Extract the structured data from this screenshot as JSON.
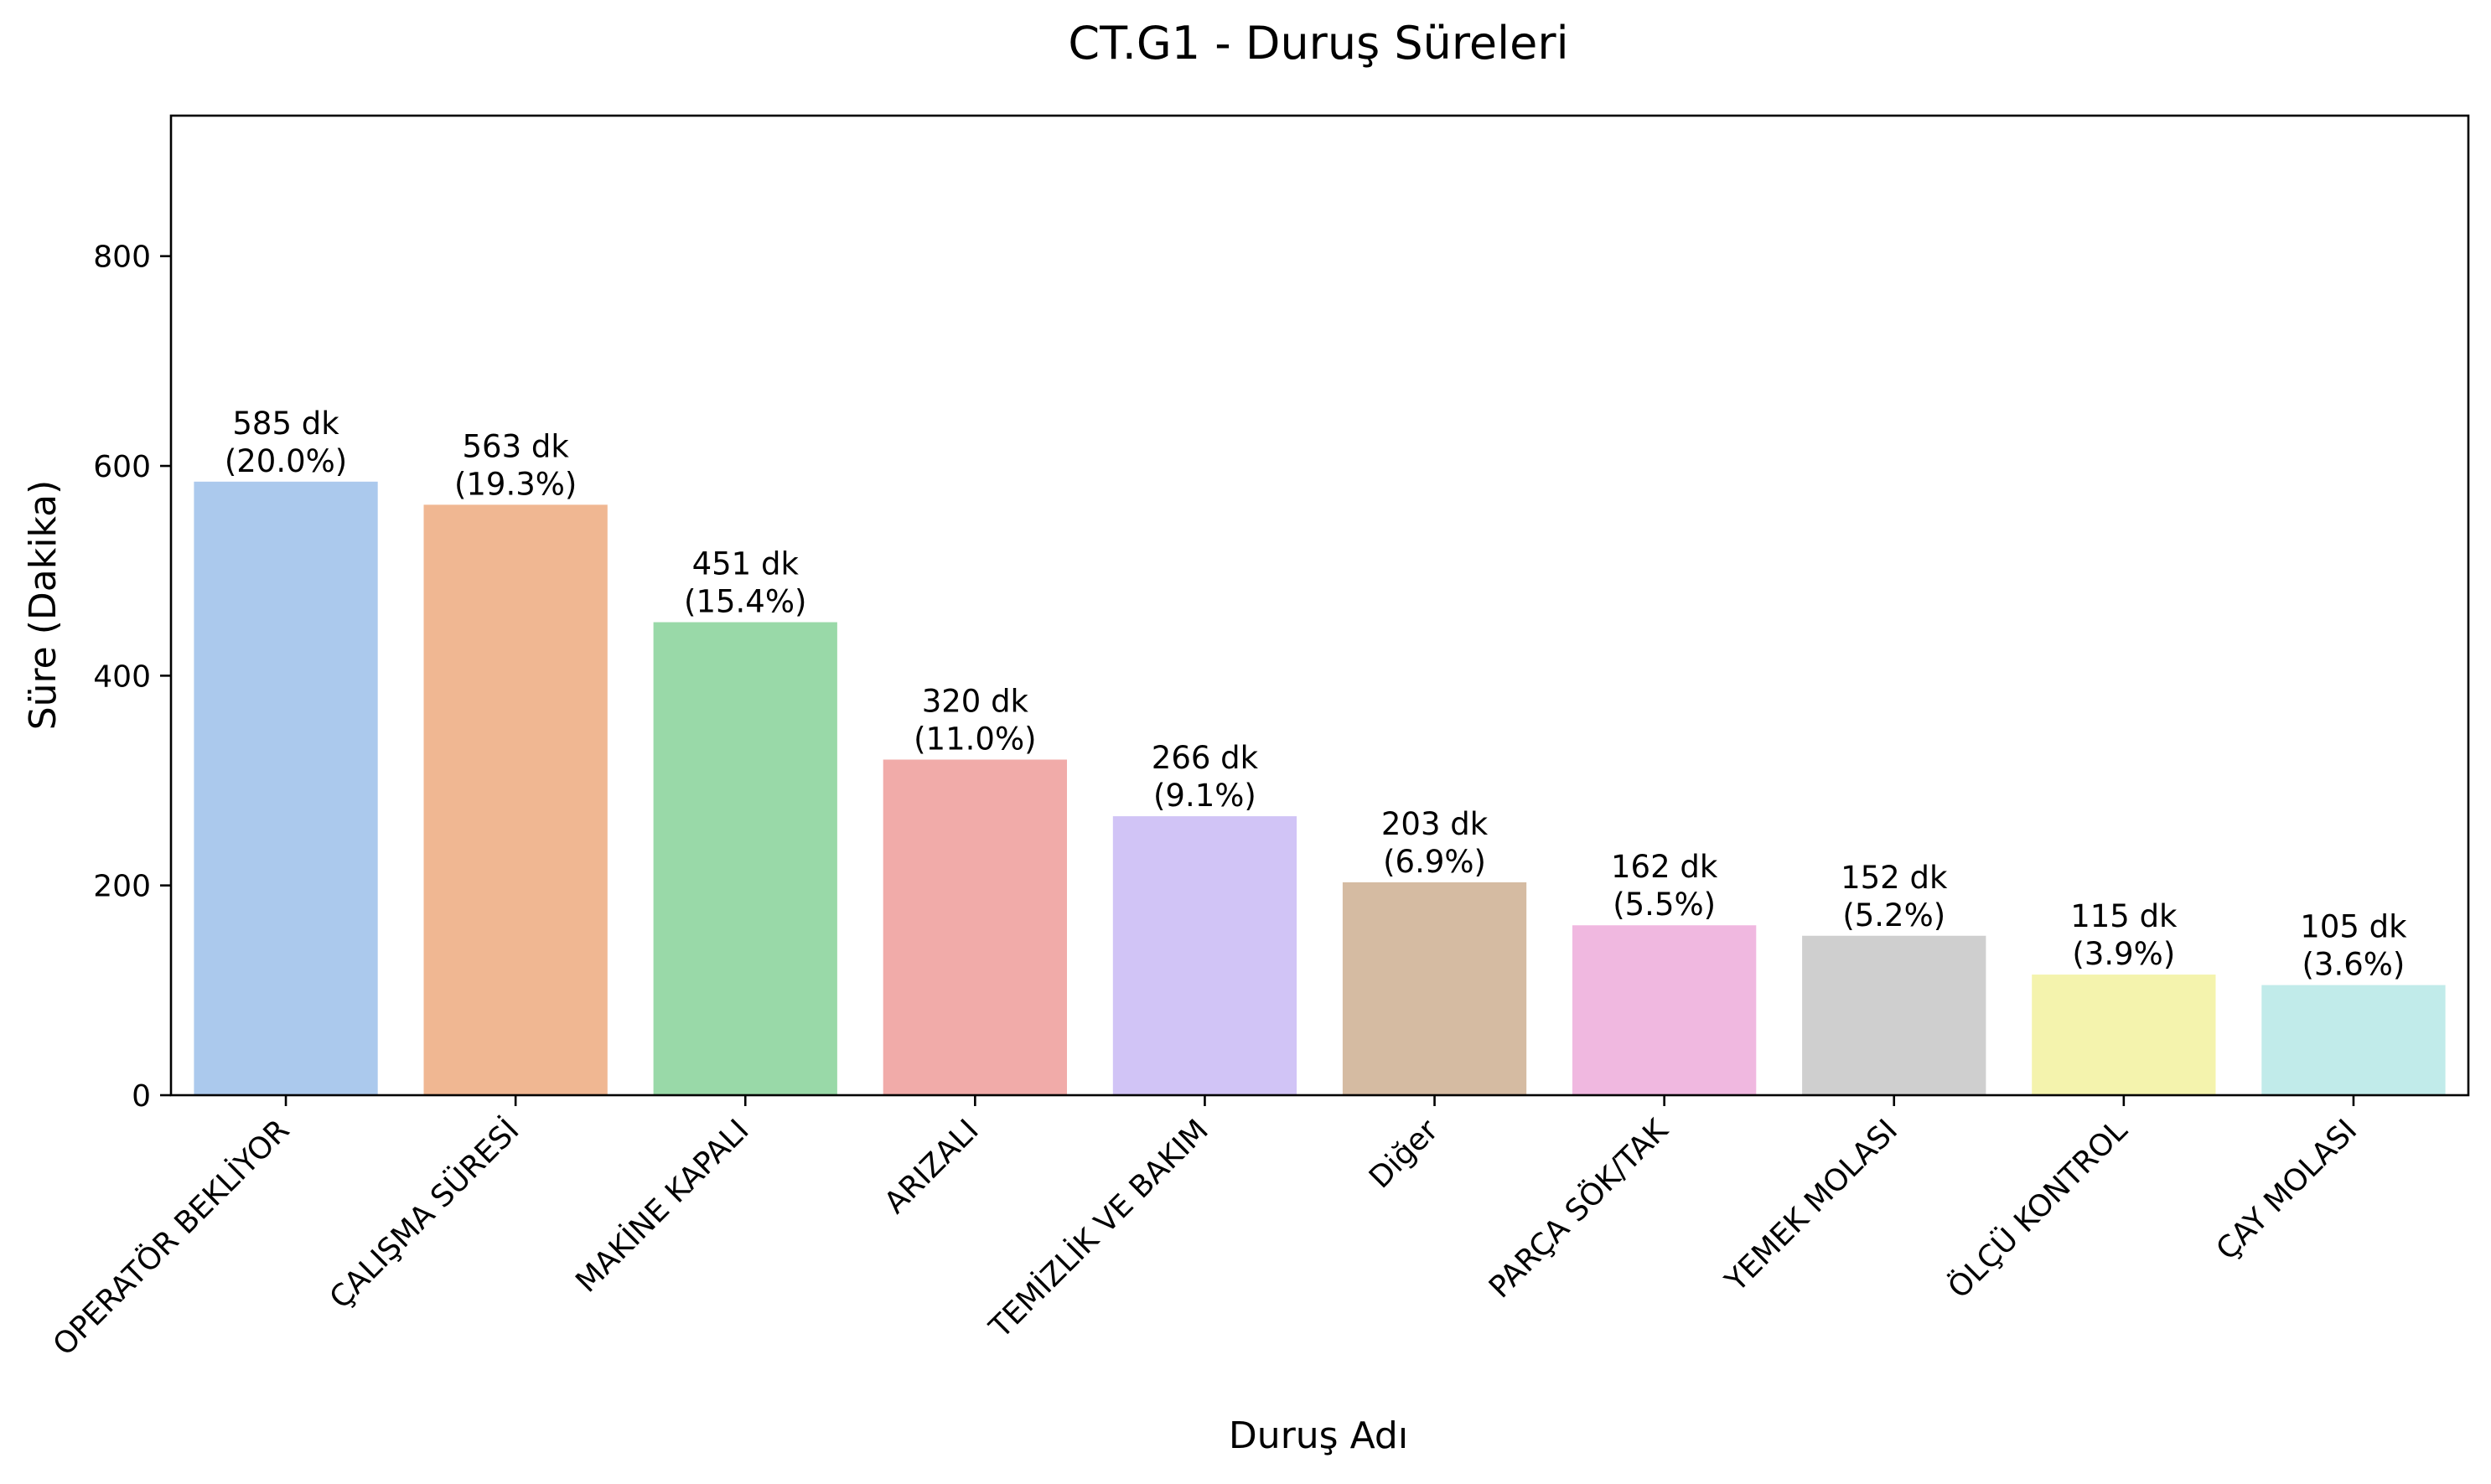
{
  "chart_data": {
    "type": "bar",
    "title": "CT.G1 - Duruş Süreleri",
    "xlabel": "Duruş Adı",
    "ylabel": "Süre (Dakika)",
    "ylim": [
      0,
      934
    ],
    "yticks": [
      0,
      200,
      400,
      600,
      800
    ],
    "grid": false,
    "categories": [
      "OPERATÖR BEKLİYOR",
      "ÇALIŞMA SÜRESİ",
      "MAKİNE KAPALI",
      "ARIZALI",
      "TEMİZLİK VE BAKIM",
      "Diğer",
      "PARÇA SÖK/TAK",
      "YEMEK MOLASI",
      "ÖLÇÜ KONTROL",
      "ÇAY MOLASI"
    ],
    "values": [
      585,
      563,
      451,
      320,
      266,
      203,
      162,
      152,
      115,
      105
    ],
    "value_labels": [
      "585 dk",
      "563 dk",
      "451 dk",
      "320 dk",
      "266 dk",
      "203 dk",
      "162 dk",
      "152 dk",
      "115 dk",
      "105 dk"
    ],
    "percent_labels": [
      "(20.0%)",
      "(19.3%)",
      "(15.4%)",
      "(11.0%)",
      "(9.1%)",
      "(6.9%)",
      "(5.5%)",
      "(5.2%)",
      "(3.9%)",
      "(3.6%)"
    ],
    "colors": [
      "#abc9ed",
      "#f0b792",
      "#99d9a8",
      "#f1aba9",
      "#d1c4f6",
      "#d5bba2",
      "#f0b8e0",
      "#cfcfcf",
      "#f4f3ad",
      "#c1ebea"
    ]
  }
}
